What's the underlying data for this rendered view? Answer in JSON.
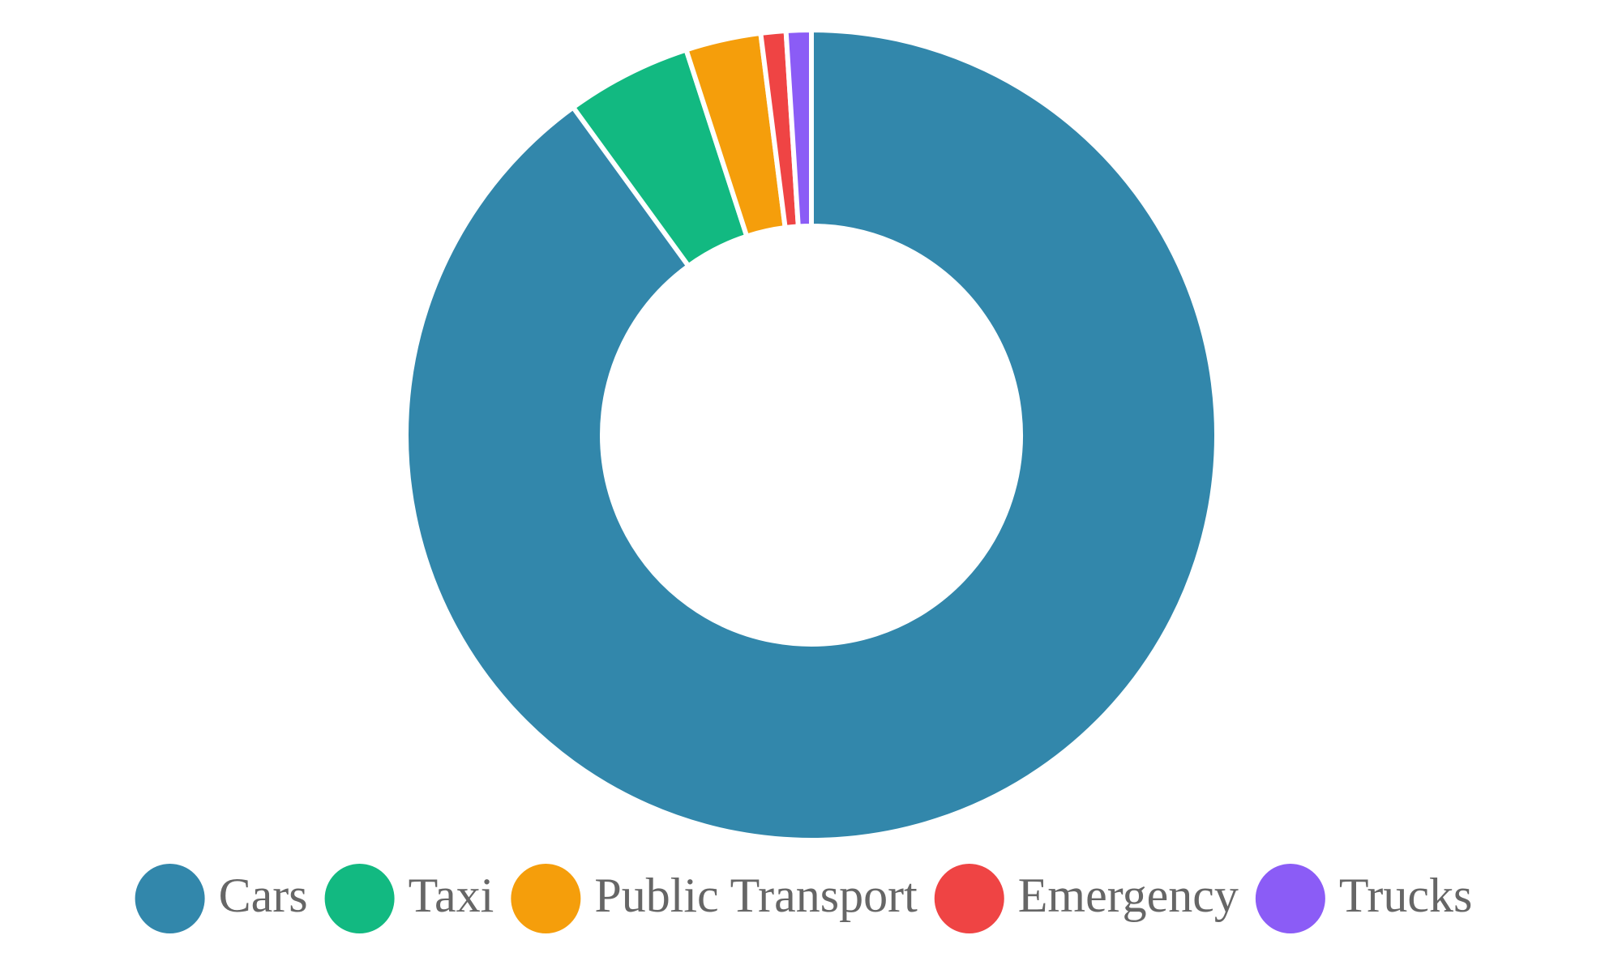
{
  "chart_data": {
    "type": "doughnut",
    "categories": [
      "Cars",
      "Taxi",
      "Public Transport",
      "Emergency",
      "Trucks"
    ],
    "values": [
      90,
      5,
      3,
      1,
      1
    ],
    "colors": [
      "#3287ab",
      "#12b981",
      "#f59e0b",
      "#ef4444",
      "#8b5cf6"
    ],
    "legend": "bottom"
  }
}
